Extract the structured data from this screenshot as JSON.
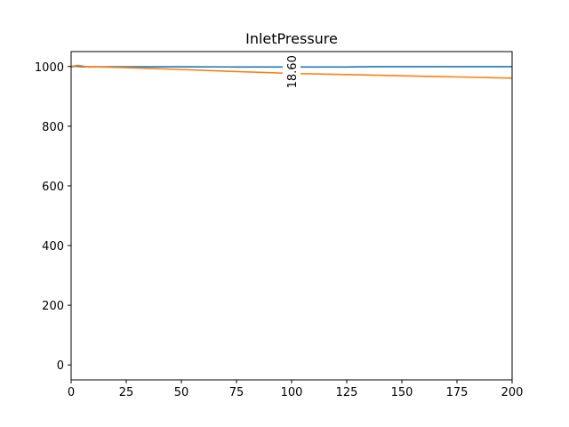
{
  "chart_data": {
    "type": "line",
    "title": "InletPressure",
    "xlabel": "",
    "ylabel": "",
    "xlim": [
      0,
      200
    ],
    "ylim": [
      -50,
      1050
    ],
    "xticks": [
      0,
      25,
      50,
      75,
      100,
      125,
      150,
      175,
      200
    ],
    "yticks": [
      0,
      200,
      400,
      600,
      800,
      1000
    ],
    "grid": false,
    "legend": "none",
    "series": [
      {
        "color": "#1f77b4",
        "x": [
          0,
          2,
          5,
          10,
          25,
          50,
          75,
          100,
          125,
          137,
          150,
          175,
          200
        ],
        "y": [
          999,
          1001,
          999,
          999,
          999,
          999,
          998.5,
          998.5,
          998.5,
          999.5,
          999.5,
          999.5,
          999.5
        ]
      },
      {
        "color": "#ff7f0e",
        "x": [
          0,
          3,
          5,
          8,
          10,
          25,
          50,
          75,
          100,
          125,
          150,
          175,
          200
        ],
        "y": [
          1000,
          1004,
          1002,
          998,
          999,
          996,
          990,
          983,
          977,
          973,
          969,
          965,
          961
        ]
      }
    ],
    "annotations": [
      {
        "text": "18.60",
        "x": 100,
        "y": 1000,
        "rotation": -90
      }
    ]
  }
}
